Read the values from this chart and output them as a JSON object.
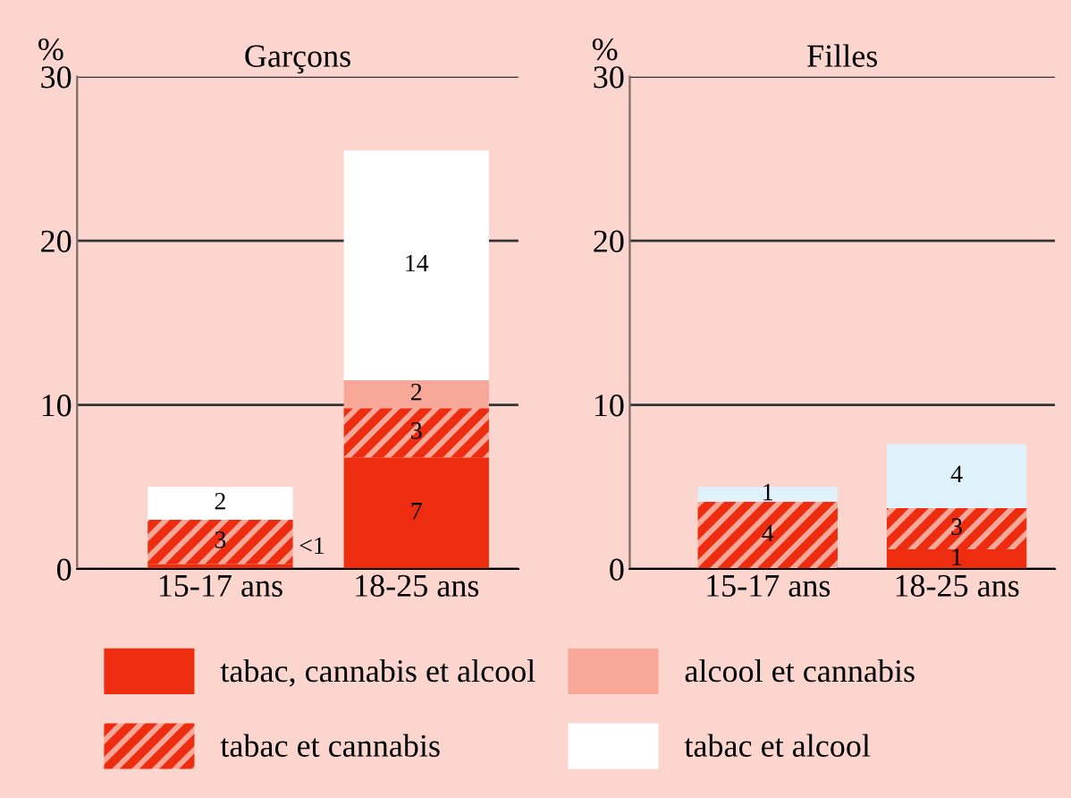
{
  "chart_data": [
    {
      "type": "bar",
      "stacked": true,
      "title": "Garçons",
      "ylabel": "%",
      "categories": [
        "15-17 ans",
        "18-25 ans"
      ],
      "ylim": [
        0,
        30
      ],
      "yticks": [
        0,
        10,
        20,
        30
      ],
      "grid": "y",
      "legend": "bottom",
      "series": [
        {
          "name": "tabac, cannabis et alcool",
          "color": "#ee2c10",
          "values": [
            0.3,
            6.8
          ],
          "value_labels": [
            "<1",
            "7"
          ]
        },
        {
          "name": "tabac et cannabis",
          "color": "#f7a898",
          "values": [
            2.7,
            3.0
          ],
          "value_labels": [
            "3",
            "3"
          ]
        },
        {
          "name": "alcool et cannabis",
          "color": "#f7a898",
          "values": [
            null,
            1.7
          ],
          "value_labels": [
            null,
            "2"
          ]
        },
        {
          "name": "tabac et alcool",
          "color": "#ffffff",
          "values": [
            2.0,
            14.0
          ],
          "value_labels": [
            "2",
            "14"
          ]
        }
      ]
    },
    {
      "type": "bar",
      "stacked": true,
      "title": "Filles",
      "ylabel": "%",
      "categories": [
        "15-17 ans",
        "18-25 ans"
      ],
      "ylim": [
        0,
        30
      ],
      "yticks": [
        0,
        10,
        20,
        30
      ],
      "grid": "y",
      "series": [
        {
          "color": "#ee2c10",
          "values": [
            null,
            1.2
          ],
          "value_labels": [
            null,
            "1"
          ]
        },
        {
          "color": "#f7a898",
          "values": [
            4.1,
            2.5
          ],
          "value_labels": [
            "4",
            "3"
          ]
        },
        {
          "color": "#f7a898",
          "values": [
            null,
            null
          ],
          "value_labels": [
            null,
            null
          ]
        },
        {
          "color": "#dff1fb",
          "values": [
            0.9,
            3.9
          ],
          "value_labels": [
            "1",
            "4"
          ]
        }
      ]
    }
  ]
}
